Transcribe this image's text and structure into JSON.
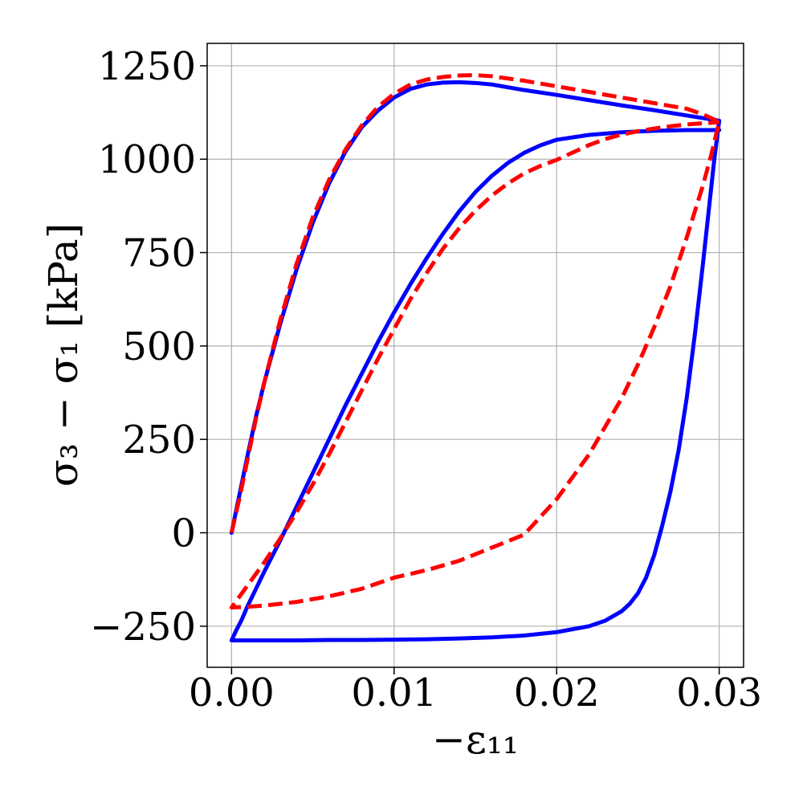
{
  "chart_data": {
    "type": "line",
    "title": "",
    "xlabel": "−ε₁₁",
    "ylabel": "σ₃ − σ₁ [kPa]",
    "xlim": [
      -0.0015,
      0.0315
    ],
    "ylim": [
      -360,
      1310
    ],
    "xticks": [
      0.0,
      0.01,
      0.02,
      0.03
    ],
    "xtick_labels": [
      "0.00",
      "0.01",
      "0.02",
      "0.03"
    ],
    "yticks": [
      -250,
      0,
      250,
      500,
      750,
      1000,
      1250
    ],
    "ytick_labels": [
      "−250",
      "0",
      "250",
      "500",
      "750",
      "1000",
      "1250"
    ],
    "grid": true,
    "legend": "none",
    "series": [
      {
        "color": "#0000ff",
        "style": "solid",
        "x": [
          0.0,
          0.0005,
          0.001,
          0.0015,
          0.002,
          0.003,
          0.004,
          0.005,
          0.006,
          0.007,
          0.008,
          0.009,
          0.01,
          0.011,
          0.012,
          0.013,
          0.014,
          0.015,
          0.016,
          0.018,
          0.02,
          0.022,
          0.024,
          0.026,
          0.028,
          0.03,
          0.0297,
          0.0294,
          0.029,
          0.0285,
          0.028,
          0.0275,
          0.027,
          0.0265,
          0.026,
          0.0255,
          0.025,
          0.0245,
          0.024,
          0.023,
          0.022,
          0.02,
          0.018,
          0.016,
          0.014,
          0.012,
          0.01,
          0.008,
          0.006,
          0.004,
          0.002,
          0.001,
          0.0,
          0.0003,
          0.0006,
          0.001,
          0.0015,
          0.002,
          0.003,
          0.004,
          0.005,
          0.006,
          0.007,
          0.008,
          0.009,
          0.01,
          0.011,
          0.012,
          0.013,
          0.014,
          0.015,
          0.016,
          0.017,
          0.018,
          0.019,
          0.02,
          0.022,
          0.024,
          0.026,
          0.028,
          0.03
        ],
        "y": [
          0,
          105,
          210,
          310,
          400,
          560,
          705,
          830,
          935,
          1020,
          1085,
          1130,
          1165,
          1188,
          1200,
          1205,
          1206,
          1204,
          1200,
          1185,
          1172,
          1158,
          1144,
          1131,
          1117,
          1103,
          1000,
          880,
          720,
          530,
          360,
          220,
          110,
          20,
          -60,
          -120,
          -162,
          -190,
          -210,
          -235,
          -250,
          -266,
          -275,
          -280,
          -283,
          -285,
          -286,
          -287,
          -287,
          -288,
          -288,
          -288,
          -288,
          -260,
          -235,
          -195,
          -150,
          -105,
          -20,
          70,
          160,
          250,
          340,
          425,
          510,
          590,
          665,
          735,
          800,
          860,
          912,
          955,
          990,
          1017,
          1037,
          1052,
          1065,
          1072,
          1076,
          1078,
          1078
        ]
      },
      {
        "color": "#ff0000",
        "style": "dashed",
        "x": [
          0.0,
          0.0005,
          0.001,
          0.0015,
          0.002,
          0.003,
          0.004,
          0.005,
          0.006,
          0.007,
          0.008,
          0.009,
          0.01,
          0.011,
          0.012,
          0.013,
          0.014,
          0.015,
          0.016,
          0.018,
          0.02,
          0.022,
          0.024,
          0.026,
          0.028,
          0.029,
          0.03,
          0.0295,
          0.029,
          0.028,
          0.027,
          0.026,
          0.025,
          0.024,
          0.022,
          0.02,
          0.018,
          0.016,
          0.014,
          0.012,
          0.01,
          0.008,
          0.006,
          0.004,
          0.002,
          0.001,
          0.0,
          0.001,
          0.002,
          0.003,
          0.004,
          0.005,
          0.006,
          0.007,
          0.008,
          0.009,
          0.01,
          0.011,
          0.012,
          0.013,
          0.014,
          0.015,
          0.016,
          0.017,
          0.018,
          0.019,
          0.02,
          0.021,
          0.022,
          0.023,
          0.024,
          0.025,
          0.026,
          0.027,
          0.028,
          0.029,
          0.03
        ],
        "y": [
          0,
          95,
          200,
          305,
          400,
          570,
          720,
          845,
          945,
          1025,
          1090,
          1140,
          1175,
          1200,
          1213,
          1220,
          1224,
          1225,
          1222,
          1210,
          1195,
          1180,
          1165,
          1150,
          1135,
          1120,
          1100,
          1010,
          930,
          790,
          660,
          550,
          450,
          360,
          210,
          90,
          -5,
          -40,
          -75,
          -100,
          -120,
          -150,
          -170,
          -185,
          -195,
          -198,
          -200,
          -140,
          -80,
          -15,
          55,
          130,
          210,
          295,
          380,
          465,
          545,
          625,
          695,
          760,
          815,
          862,
          902,
          935,
          962,
          982,
          998,
          1018,
          1038,
          1054,
          1066,
          1075,
          1082,
          1088,
          1093,
          1096,
          1099
        ]
      }
    ]
  }
}
